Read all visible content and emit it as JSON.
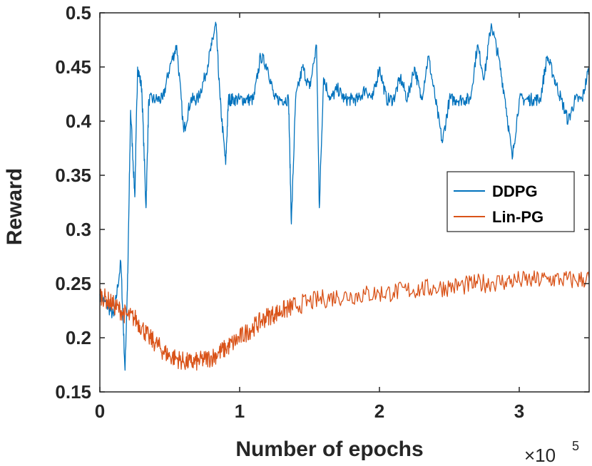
{
  "chart_data": {
    "type": "line",
    "xlabel": "Number of epochs",
    "ylabel": "Reward",
    "x_exponent": "×10",
    "x_exponent_power": "5",
    "xlim": [
      0,
      3.5
    ],
    "ylim": [
      0.15,
      0.5
    ],
    "x_ticks": [
      0,
      1,
      2,
      3
    ],
    "x_tick_labels": [
      "0",
      "1",
      "2",
      "3"
    ],
    "y_ticks": [
      0.15,
      0.2,
      0.25,
      0.3,
      0.35,
      0.4,
      0.45,
      0.5
    ],
    "y_tick_labels": [
      "0.15",
      "0.2",
      "0.25",
      "0.3",
      "0.35",
      "0.4",
      "0.45",
      "0.5"
    ],
    "grid": false,
    "legend_position": "right",
    "series": [
      {
        "name": "DDPG",
        "color": "#0072BD",
        "x": [
          0,
          0.05,
          0.1,
          0.15,
          0.18,
          0.2,
          0.22,
          0.25,
          0.27,
          0.3,
          0.33,
          0.35,
          0.4,
          0.45,
          0.5,
          0.55,
          0.6,
          0.65,
          0.7,
          0.75,
          0.8,
          0.83,
          0.86,
          0.9,
          0.92,
          0.95,
          1.0,
          1.05,
          1.1,
          1.15,
          1.2,
          1.25,
          1.3,
          1.35,
          1.37,
          1.4,
          1.45,
          1.5,
          1.55,
          1.57,
          1.6,
          1.65,
          1.7,
          1.75,
          1.8,
          1.85,
          1.9,
          1.95,
          2.0,
          2.05,
          2.1,
          2.15,
          2.2,
          2.25,
          2.3,
          2.35,
          2.4,
          2.45,
          2.5,
          2.55,
          2.6,
          2.65,
          2.7,
          2.75,
          2.8,
          2.85,
          2.9,
          2.95,
          3.0,
          3.05,
          3.1,
          3.15,
          3.2,
          3.25,
          3.3,
          3.35,
          3.4,
          3.45,
          3.5
        ],
        "values": [
          0.24,
          0.23,
          0.22,
          0.27,
          0.17,
          0.26,
          0.41,
          0.33,
          0.45,
          0.43,
          0.32,
          0.42,
          0.42,
          0.42,
          0.45,
          0.47,
          0.39,
          0.42,
          0.42,
          0.44,
          0.47,
          0.49,
          0.42,
          0.36,
          0.42,
          0.42,
          0.42,
          0.42,
          0.42,
          0.46,
          0.45,
          0.42,
          0.42,
          0.42,
          0.305,
          0.42,
          0.45,
          0.43,
          0.47,
          0.32,
          0.44,
          0.42,
          0.43,
          0.42,
          0.42,
          0.42,
          0.43,
          0.42,
          0.45,
          0.42,
          0.42,
          0.44,
          0.42,
          0.45,
          0.42,
          0.46,
          0.42,
          0.38,
          0.42,
          0.42,
          0.42,
          0.42,
          0.47,
          0.44,
          0.49,
          0.46,
          0.42,
          0.365,
          0.42,
          0.42,
          0.42,
          0.42,
          0.46,
          0.44,
          0.42,
          0.4,
          0.42,
          0.42,
          0.45
        ]
      },
      {
        "name": "Lin-PG",
        "color": "#D95319",
        "x": [
          0,
          0.05,
          0.1,
          0.15,
          0.2,
          0.25,
          0.3,
          0.35,
          0.4,
          0.45,
          0.5,
          0.55,
          0.6,
          0.65,
          0.7,
          0.75,
          0.8,
          0.85,
          0.9,
          0.95,
          1.0,
          1.05,
          1.1,
          1.15,
          1.2,
          1.25,
          1.3,
          1.35,
          1.4,
          1.5,
          1.6,
          1.7,
          1.8,
          1.9,
          2.0,
          2.1,
          2.2,
          2.3,
          2.4,
          2.5,
          2.6,
          2.7,
          2.8,
          2.9,
          3.0,
          3.1,
          3.2,
          3.3,
          3.4,
          3.5
        ],
        "values": [
          0.24,
          0.235,
          0.23,
          0.225,
          0.22,
          0.218,
          0.21,
          0.2,
          0.195,
          0.188,
          0.183,
          0.181,
          0.178,
          0.177,
          0.178,
          0.18,
          0.182,
          0.186,
          0.19,
          0.195,
          0.2,
          0.205,
          0.21,
          0.215,
          0.22,
          0.222,
          0.225,
          0.227,
          0.23,
          0.233,
          0.236,
          0.238,
          0.239,
          0.24,
          0.241,
          0.242,
          0.244,
          0.245,
          0.246,
          0.247,
          0.248,
          0.25,
          0.251,
          0.252,
          0.253,
          0.253,
          0.254,
          0.254,
          0.253,
          0.255
        ]
      }
    ]
  }
}
